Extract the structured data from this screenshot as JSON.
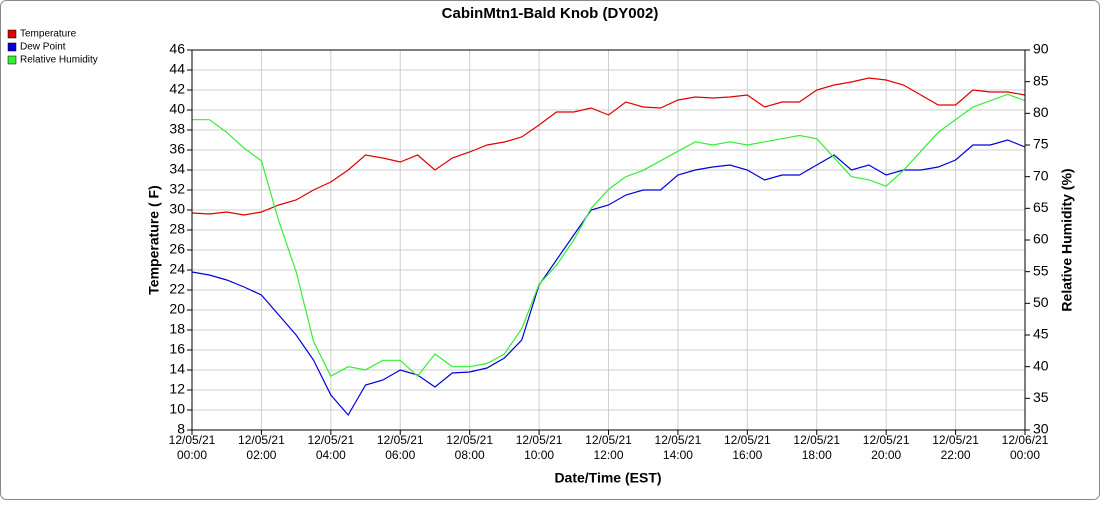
{
  "chart_data": {
    "type": "line",
    "title": "CabinMtn1-Bald Knob (DY002)",
    "xlabel": "Date/Time (EST)",
    "ylabel": "Temperature ( F)",
    "y2label": "Relative Humidity (%)",
    "legend": "upper-left-outside",
    "grid": true,
    "x": [
      "12/05/21 00:00",
      "12/05/21 00:30",
      "12/05/21 01:00",
      "12/05/21 01:30",
      "12/05/21 02:00",
      "12/05/21 02:30",
      "12/05/21 03:00",
      "12/05/21 03:30",
      "12/05/21 04:00",
      "12/05/21 04:30",
      "12/05/21 05:00",
      "12/05/21 05:30",
      "12/05/21 06:00",
      "12/05/21 06:30",
      "12/05/21 07:00",
      "12/05/21 07:30",
      "12/05/21 08:00",
      "12/05/21 08:30",
      "12/05/21 09:00",
      "12/05/21 09:30",
      "12/05/21 10:00",
      "12/05/21 10:30",
      "12/05/21 11:00",
      "12/05/21 11:30",
      "12/05/21 12:00",
      "12/05/21 12:30",
      "12/05/21 13:00",
      "12/05/21 13:30",
      "12/05/21 14:00",
      "12/05/21 14:30",
      "12/05/21 15:00",
      "12/05/21 15:30",
      "12/05/21 16:00",
      "12/05/21 16:30",
      "12/05/21 17:00",
      "12/05/21 17:30",
      "12/05/21 18:00",
      "12/05/21 18:30",
      "12/05/21 19:00",
      "12/05/21 19:30",
      "12/05/21 20:00",
      "12/05/21 20:30",
      "12/05/21 21:00",
      "12/05/21 21:30",
      "12/05/21 22:00",
      "12/05/21 22:30",
      "12/05/21 23:00",
      "12/05/21 23:30",
      "12/06/21 00:00"
    ],
    "xlim": [
      "12/05/21 00:00",
      "12/06/21 00:00"
    ],
    "xticks": [
      "12/05/21 00:00",
      "12/05/21 02:00",
      "12/05/21 04:00",
      "12/05/21 06:00",
      "12/05/21 08:00",
      "12/05/21 10:00",
      "12/05/21 12:00",
      "12/05/21 14:00",
      "12/05/21 16:00",
      "12/05/21 18:00",
      "12/05/21 20:00",
      "12/05/21 22:00",
      "12/06/21 00:00"
    ],
    "ylim": [
      8,
      46
    ],
    "yticks": [
      8,
      10,
      12,
      14,
      16,
      18,
      20,
      22,
      24,
      26,
      28,
      30,
      32,
      34,
      36,
      38,
      40,
      42,
      44,
      46
    ],
    "y2lim": [
      30,
      90
    ],
    "y2ticks": [
      30,
      35,
      40,
      45,
      50,
      55,
      60,
      65,
      70,
      75,
      80,
      85,
      90
    ],
    "series": [
      {
        "name": "Temperature",
        "color": "#e00000",
        "values": [
          29.7,
          29.6,
          29.8,
          29.5,
          29.8,
          30.5,
          31.0,
          32.0,
          32.8,
          34.0,
          35.5,
          35.2,
          34.8,
          35.5,
          34.0,
          35.2,
          35.8,
          36.5,
          36.8,
          37.3,
          38.5,
          39.8,
          39.8,
          40.2,
          39.5,
          40.8,
          40.3,
          40.2,
          41.0,
          41.3,
          41.2,
          41.3,
          41.5,
          40.3,
          40.8,
          40.8,
          42.0,
          42.5,
          42.8,
          43.2,
          43.0,
          42.5,
          41.5,
          40.5,
          40.5,
          42.0,
          41.8,
          41.8,
          41.5
        ]
      },
      {
        "name": "Dew Point",
        "color": "#0000dd",
        "values": [
          23.8,
          23.5,
          23.0,
          22.3,
          21.5,
          19.5,
          17.5,
          15.0,
          11.5,
          9.5,
          12.5,
          13.0,
          14.0,
          13.5,
          12.3,
          13.7,
          13.8,
          14.2,
          15.2,
          17.0,
          22.5,
          25.0,
          27.5,
          30.0,
          30.5,
          31.5,
          32.0,
          32.0,
          33.5,
          34.0,
          34.3,
          34.5,
          34.0,
          33.0,
          33.5,
          33.5,
          34.5,
          35.5,
          34.0,
          34.5,
          33.5,
          34.0,
          34.0,
          34.3,
          35.0,
          36.5,
          36.5,
          37.0,
          36.3
        ]
      },
      {
        "name": "Relative Humidity",
        "color": "#33ee33",
        "axis": "y2",
        "values": [
          79,
          79,
          77,
          74.5,
          72.5,
          63,
          55,
          44,
          38.5,
          40,
          39.5,
          41,
          41,
          38.5,
          42,
          40,
          40,
          40.5,
          42,
          46,
          53,
          56,
          60,
          65,
          68,
          70,
          71,
          72.5,
          74,
          75.5,
          75,
          75.5,
          75,
          75.5,
          76,
          76.5,
          76,
          73,
          70,
          69.5,
          68.5,
          71,
          74,
          77,
          79,
          81,
          82,
          83,
          82
        ]
      }
    ]
  }
}
